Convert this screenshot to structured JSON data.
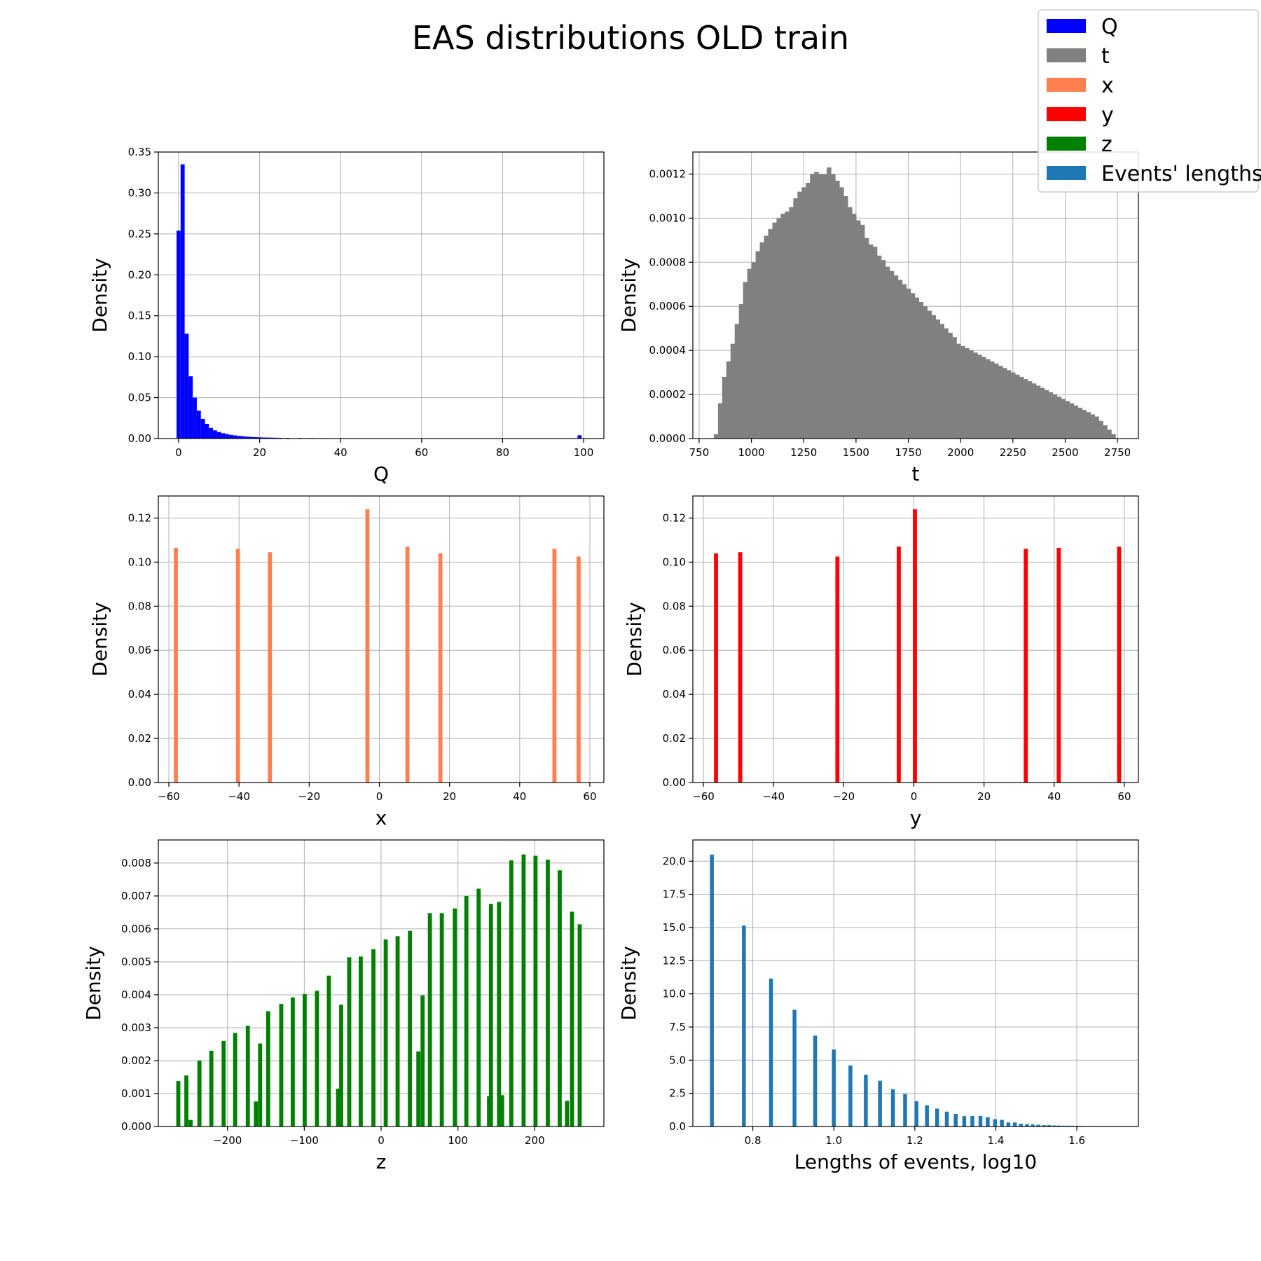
{
  "figure": {
    "title": "EAS distributions OLD train"
  },
  "legend": {
    "placement": "top-right",
    "entries": [
      {
        "label": "Q",
        "color": "#0000ff"
      },
      {
        "label": "t",
        "color": "#808080"
      },
      {
        "label": "x",
        "color": "#ff7f50"
      },
      {
        "label": "y",
        "color": "#ff0000"
      },
      {
        "label": "z",
        "color": "#008000"
      },
      {
        "label": "Events' lengths",
        "color": "#1f77b4"
      }
    ]
  },
  "chart_data": [
    {
      "type": "bar",
      "name": "Q",
      "color": "#0000ff",
      "xlabel": "Q",
      "ylabel": "Density",
      "xlim": [
        -5,
        105
      ],
      "ylim": [
        0,
        0.35
      ],
      "grid": true,
      "xticks": [
        0,
        20,
        40,
        60,
        80,
        100
      ],
      "xtick_labels": [
        "0",
        "20",
        "40",
        "60",
        "80",
        "100"
      ],
      "yticks": [
        0,
        0.05,
        0.1,
        0.15,
        0.2,
        0.25,
        0.3,
        0.35
      ],
      "ytick_labels": [
        "0.00",
        "0.05",
        "0.10",
        "0.15",
        "0.20",
        "0.25",
        "0.30",
        "0.35"
      ],
      "bin_width": 1,
      "bins": [
        [
          0,
          0.254
        ],
        [
          1,
          0.335
        ],
        [
          2,
          0.128
        ],
        [
          3,
          0.076
        ],
        [
          4,
          0.05
        ],
        [
          5,
          0.034
        ],
        [
          6,
          0.024
        ],
        [
          7,
          0.018
        ],
        [
          8,
          0.013
        ],
        [
          9,
          0.01
        ],
        [
          10,
          0.008
        ],
        [
          11,
          0.0065
        ],
        [
          12,
          0.0055
        ],
        [
          13,
          0.0045
        ],
        [
          14,
          0.0038
        ],
        [
          15,
          0.0032
        ],
        [
          16,
          0.0027
        ],
        [
          17,
          0.0023
        ],
        [
          18,
          0.002
        ],
        [
          19,
          0.0017
        ],
        [
          20,
          0.0015
        ],
        [
          21,
          0.0013
        ],
        [
          22,
          0.0012
        ],
        [
          23,
          0.0011
        ],
        [
          24,
          0.001
        ],
        [
          25,
          0.0009
        ],
        [
          27,
          0.0008
        ],
        [
          30,
          0.0007
        ],
        [
          33,
          0.0006
        ],
        [
          36,
          0.0005
        ],
        [
          40,
          0.0005
        ],
        [
          44,
          0.0004
        ],
        [
          48,
          0.0004
        ],
        [
          52,
          0.0004
        ],
        [
          55,
          0.0004
        ],
        [
          99,
          0.004
        ]
      ]
    },
    {
      "type": "bar",
      "name": "t",
      "color": "#808080",
      "xlabel": "t",
      "ylabel": "Density",
      "xlim": [
        720,
        2850
      ],
      "ylim": [
        0,
        0.0013
      ],
      "grid": true,
      "xticks": [
        750,
        1000,
        1250,
        1500,
        1750,
        2000,
        2250,
        2500,
        2750
      ],
      "xtick_labels": [
        "750",
        "1000",
        "1250",
        "1500",
        "1750",
        "2000",
        "2250",
        "2500",
        "2750"
      ],
      "yticks": [
        0,
        0.0002,
        0.0004,
        0.0006,
        0.0008,
        0.001,
        0.0012
      ],
      "ytick_labels": [
        "0.0000",
        "0.0002",
        "0.0004",
        "0.0006",
        "0.0008",
        "0.0010",
        "0.0012"
      ],
      "x_start": 820,
      "bin_width": 20,
      "values": [
        2e-05,
        0.00016,
        0.00028,
        0.00035,
        0.00043,
        0.00052,
        0.00061,
        0.00071,
        0.00077,
        0.0008,
        0.00085,
        0.00089,
        0.00092,
        0.00095,
        0.00098,
        0.001,
        0.00102,
        0.00103,
        0.00105,
        0.00109,
        0.00112,
        0.00114,
        0.00116,
        0.0012,
        0.00121,
        0.0012,
        0.0012,
        0.00123,
        0.0012,
        0.00117,
        0.00114,
        0.0011,
        0.00105,
        0.00102,
        0.00099,
        0.00097,
        0.00091,
        0.00088,
        0.00087,
        0.00083,
        0.00081,
        0.00078,
        0.00076,
        0.00074,
        0.00072,
        0.0007,
        0.00068,
        0.00066,
        0.00064,
        0.00062,
        0.0006,
        0.00058,
        0.00056,
        0.00054,
        0.00052,
        0.0005,
        0.00048,
        0.00046,
        0.00043,
        0.00042,
        0.00041,
        0.0004,
        0.00039,
        0.00038,
        0.00037,
        0.00036,
        0.00035,
        0.00034,
        0.00033,
        0.00032,
        0.00031,
        0.0003,
        0.00029,
        0.00028,
        0.00027,
        0.00026,
        0.00025,
        0.00024,
        0.00023,
        0.00022,
        0.00021,
        0.0002,
        0.00019,
        0.00018,
        0.00017,
        0.00016,
        0.00015,
        0.00014,
        0.00013,
        0.00012,
        0.00011,
        0.0001,
        8e-05,
        6e-05,
        4e-05,
        2e-05
      ]
    },
    {
      "type": "bar",
      "name": "x",
      "color": "#ff7f50",
      "xlabel": "x",
      "ylabel": "Density",
      "xlim": [
        -63,
        64
      ],
      "ylim": [
        0,
        0.13
      ],
      "grid": true,
      "xticks": [
        -60,
        -40,
        -20,
        0,
        20,
        40,
        60
      ],
      "xtick_labels": [
        "−60",
        "−40",
        "−20",
        "0",
        "20",
        "40",
        "60"
      ],
      "yticks": [
        0,
        0.02,
        0.04,
        0.06,
        0.08,
        0.1,
        0.12
      ],
      "ytick_labels": [
        "0.00",
        "0.02",
        "0.04",
        "0.06",
        "0.08",
        "0.10",
        "0.12"
      ],
      "bin_width": 1.15,
      "bins": [
        [
          -58,
          0.1065
        ],
        [
          -40.3,
          0.106
        ],
        [
          -31.2,
          0.1045
        ],
        [
          -3.4,
          0.124
        ],
        [
          8,
          0.107
        ],
        [
          17.4,
          0.104
        ],
        [
          49.9,
          0.106
        ],
        [
          56.8,
          0.1025
        ]
      ]
    },
    {
      "type": "bar",
      "name": "y",
      "color": "#ff0000",
      "xlabel": "y",
      "ylabel": "Density",
      "xlim": [
        -63,
        64
      ],
      "ylim": [
        0,
        0.13
      ],
      "grid": true,
      "xticks": [
        -60,
        -40,
        -20,
        0,
        20,
        40,
        60
      ],
      "xtick_labels": [
        "−60",
        "−40",
        "−20",
        "0",
        "20",
        "40",
        "60"
      ],
      "yticks": [
        0,
        0.02,
        0.04,
        0.06,
        0.08,
        0.1,
        0.12
      ],
      "ytick_labels": [
        "0.00",
        "0.02",
        "0.04",
        "0.06",
        "0.08",
        "0.10",
        "0.12"
      ],
      "bin_width": 1.15,
      "bins": [
        [
          -56.4,
          0.104
        ],
        [
          -49.5,
          0.1045
        ],
        [
          -21.8,
          0.1025
        ],
        [
          -4.3,
          0.107
        ],
        [
          0.3,
          0.124
        ],
        [
          31.9,
          0.106
        ],
        [
          41.3,
          0.1065
        ],
        [
          58.5,
          0.107
        ]
      ]
    },
    {
      "type": "bar",
      "name": "z",
      "color": "#008000",
      "xlabel": "z",
      "ylabel": "Density",
      "xlim": [
        -290,
        290
      ],
      "ylim": [
        0,
        0.0087
      ],
      "grid": true,
      "xticks": [
        -200,
        -100,
        0,
        100,
        200
      ],
      "xtick_labels": [
        "−200",
        "−100",
        "0",
        "100",
        "200"
      ],
      "yticks": [
        0,
        0.001,
        0.002,
        0.003,
        0.004,
        0.005,
        0.006,
        0.007,
        0.008
      ],
      "ytick_labels": [
        "0.000",
        "0.001",
        "0.002",
        "0.003",
        "0.004",
        "0.005",
        "0.006",
        "0.007",
        "0.008"
      ],
      "bin_width": 5.3,
      "bins": [
        [
          -264,
          0.00138
        ],
        [
          -253.5,
          0.00155
        ],
        [
          -248,
          0.0002
        ],
        [
          -236.5,
          0.002
        ],
        [
          -221,
          0.0023
        ],
        [
          -205,
          0.0026
        ],
        [
          -190,
          0.00284
        ],
        [
          -173.5,
          0.00306
        ],
        [
          -163,
          0.00076
        ],
        [
          -157.5,
          0.00252
        ],
        [
          -147,
          0.0035
        ],
        [
          -130,
          0.00372
        ],
        [
          -115,
          0.00392
        ],
        [
          -99.5,
          0.00402
        ],
        [
          -83.5,
          0.00412
        ],
        [
          -68,
          0.00458
        ],
        [
          -56,
          0.00115
        ],
        [
          -52,
          0.0037
        ],
        [
          -41.5,
          0.00514
        ],
        [
          -26.5,
          0.00516
        ],
        [
          -10,
          0.00538
        ],
        [
          6,
          0.00568
        ],
        [
          21.5,
          0.00578
        ],
        [
          37.5,
          0.00594
        ],
        [
          48.5,
          0.00228
        ],
        [
          54,
          0.00398
        ],
        [
          63.5,
          0.00648
        ],
        [
          79,
          0.00648
        ],
        [
          96,
          0.00662
        ],
        [
          111,
          0.007
        ],
        [
          127,
          0.00722
        ],
        [
          140.5,
          0.00092
        ],
        [
          143,
          0.00676
        ],
        [
          153.5,
          0.00682
        ],
        [
          157.5,
          0.00095
        ],
        [
          169.5,
          0.00808
        ],
        [
          185.5,
          0.00826
        ],
        [
          201,
          0.00822
        ],
        [
          217,
          0.0081
        ],
        [
          232.5,
          0.00778
        ],
        [
          242,
          0.00078
        ],
        [
          248.5,
          0.00652
        ],
        [
          258.5,
          0.00614
        ]
      ]
    },
    {
      "type": "bar",
      "name": "Events' lengths",
      "color": "#1f77b4",
      "xlabel": "Lengths of events, log10",
      "ylabel": "Density",
      "xlim": [
        0.652,
        1.752
      ],
      "ylim": [
        0,
        21.6
      ],
      "grid": true,
      "xticks": [
        0.8,
        1.0,
        1.2,
        1.4,
        1.6
      ],
      "xtick_labels": [
        "0.8",
        "1.0",
        "1.2",
        "1.4",
        "1.6"
      ],
      "yticks": [
        0,
        2.5,
        5,
        7.5,
        10,
        12.5,
        15,
        17.5,
        20
      ],
      "ytick_labels": [
        "0.0",
        "2.5",
        "5.0",
        "7.5",
        "10.0",
        "12.5",
        "15.0",
        "17.5",
        "20.0"
      ],
      "bin_width": 0.0095,
      "bins": [
        [
          0.699,
          20.5
        ],
        [
          0.778,
          15.15
        ],
        [
          0.845,
          11.15
        ],
        [
          0.903,
          8.8
        ],
        [
          0.954,
          6.85
        ],
        [
          1.0,
          5.8
        ],
        [
          1.041,
          4.6
        ],
        [
          1.079,
          3.9
        ],
        [
          1.114,
          3.45
        ],
        [
          1.146,
          2.8
        ],
        [
          1.176,
          2.45
        ],
        [
          1.204,
          1.9
        ],
        [
          1.23,
          1.6
        ],
        [
          1.255,
          1.35
        ],
        [
          1.279,
          1.12
        ],
        [
          1.301,
          0.95
        ],
        [
          1.322,
          0.78
        ],
        [
          1.342,
          0.8
        ],
        [
          1.362,
          0.8
        ],
        [
          1.38,
          0.7
        ],
        [
          1.398,
          0.55
        ],
        [
          1.415,
          0.5
        ],
        [
          1.431,
          0.3
        ],
        [
          1.447,
          0.3
        ],
        [
          1.462,
          0.2
        ],
        [
          1.477,
          0.18
        ],
        [
          1.491,
          0.15
        ],
        [
          1.505,
          0.13
        ],
        [
          1.519,
          0.1
        ],
        [
          1.531,
          0.1
        ],
        [
          1.544,
          0.08
        ],
        [
          1.556,
          0.07
        ],
        [
          1.568,
          0.06
        ],
        [
          1.58,
          0.06
        ],
        [
          1.591,
          0.05
        ],
        [
          1.602,
          0.05
        ],
        [
          1.613,
          0.04
        ],
        [
          1.623,
          0.03
        ],
        [
          1.633,
          0.03
        ],
        [
          1.643,
          0.02
        ],
        [
          1.653,
          0.02
        ],
        [
          1.663,
          0.02
        ]
      ]
    }
  ]
}
